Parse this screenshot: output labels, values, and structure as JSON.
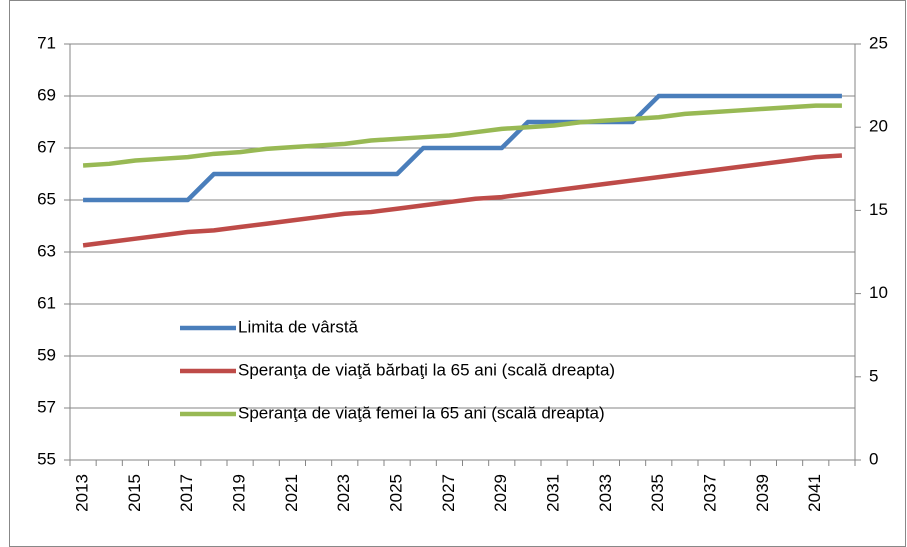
{
  "chart_data": {
    "type": "line",
    "categories": [
      "2013",
      null,
      "2015",
      null,
      "2017",
      null,
      "2019",
      null,
      "2021",
      null,
      "2023",
      null,
      "2025",
      null,
      "2027",
      null,
      "2029",
      null,
      "2031",
      null,
      "2033",
      null,
      "2035",
      null,
      "2037",
      null,
      "2039",
      null,
      "2041",
      null
    ],
    "series": [
      {
        "name": "Limita de vârstă",
        "color": "#4a7ebb",
        "values": [
          65,
          65,
          65,
          65,
          65,
          66,
          66,
          66,
          66,
          66,
          66,
          66,
          66,
          67,
          67,
          67,
          67,
          68,
          68,
          68,
          68,
          68,
          69,
          69,
          69,
          69,
          69,
          69,
          69,
          69
        ]
      },
      {
        "name": "Speranţa de viaţă bărbaţi la 65 ani (scală dreapta)",
        "color": "#be4b48",
        "axis": "y2",
        "values": [
          12.9,
          13.1,
          13.3,
          13.5,
          13.7,
          13.8,
          14.0,
          14.2,
          14.4,
          14.6,
          14.8,
          14.9,
          15.1,
          15.3,
          15.5,
          15.7,
          15.8,
          16.0,
          16.2,
          16.4,
          16.6,
          16.8,
          17.0,
          17.2,
          17.4,
          17.6,
          17.8,
          18.0,
          18.2,
          18.3
        ]
      },
      {
        "name": "Speranţa de viaţă femei la 65 ani (scală dreapta)",
        "color": "#98b954",
        "axis": "y2",
        "values": [
          17.7,
          17.8,
          18.0,
          18.1,
          18.2,
          18.4,
          18.5,
          18.7,
          18.8,
          18.9,
          19.0,
          19.2,
          19.3,
          19.4,
          19.5,
          19.7,
          19.9,
          20.0,
          20.1,
          20.3,
          20.4,
          20.5,
          20.6,
          20.8,
          20.9,
          21.0,
          21.1,
          21.2,
          21.3,
          21.3
        ]
      }
    ],
    "ylim": [
      55,
      71
    ],
    "yticks": [
      55,
      57,
      59,
      61,
      63,
      65,
      67,
      69,
      71
    ],
    "y2lim": [
      0,
      25
    ],
    "y2ticks": [
      0,
      5,
      10,
      15,
      20,
      25
    ],
    "grid": true,
    "legend": "bottom-left"
  }
}
